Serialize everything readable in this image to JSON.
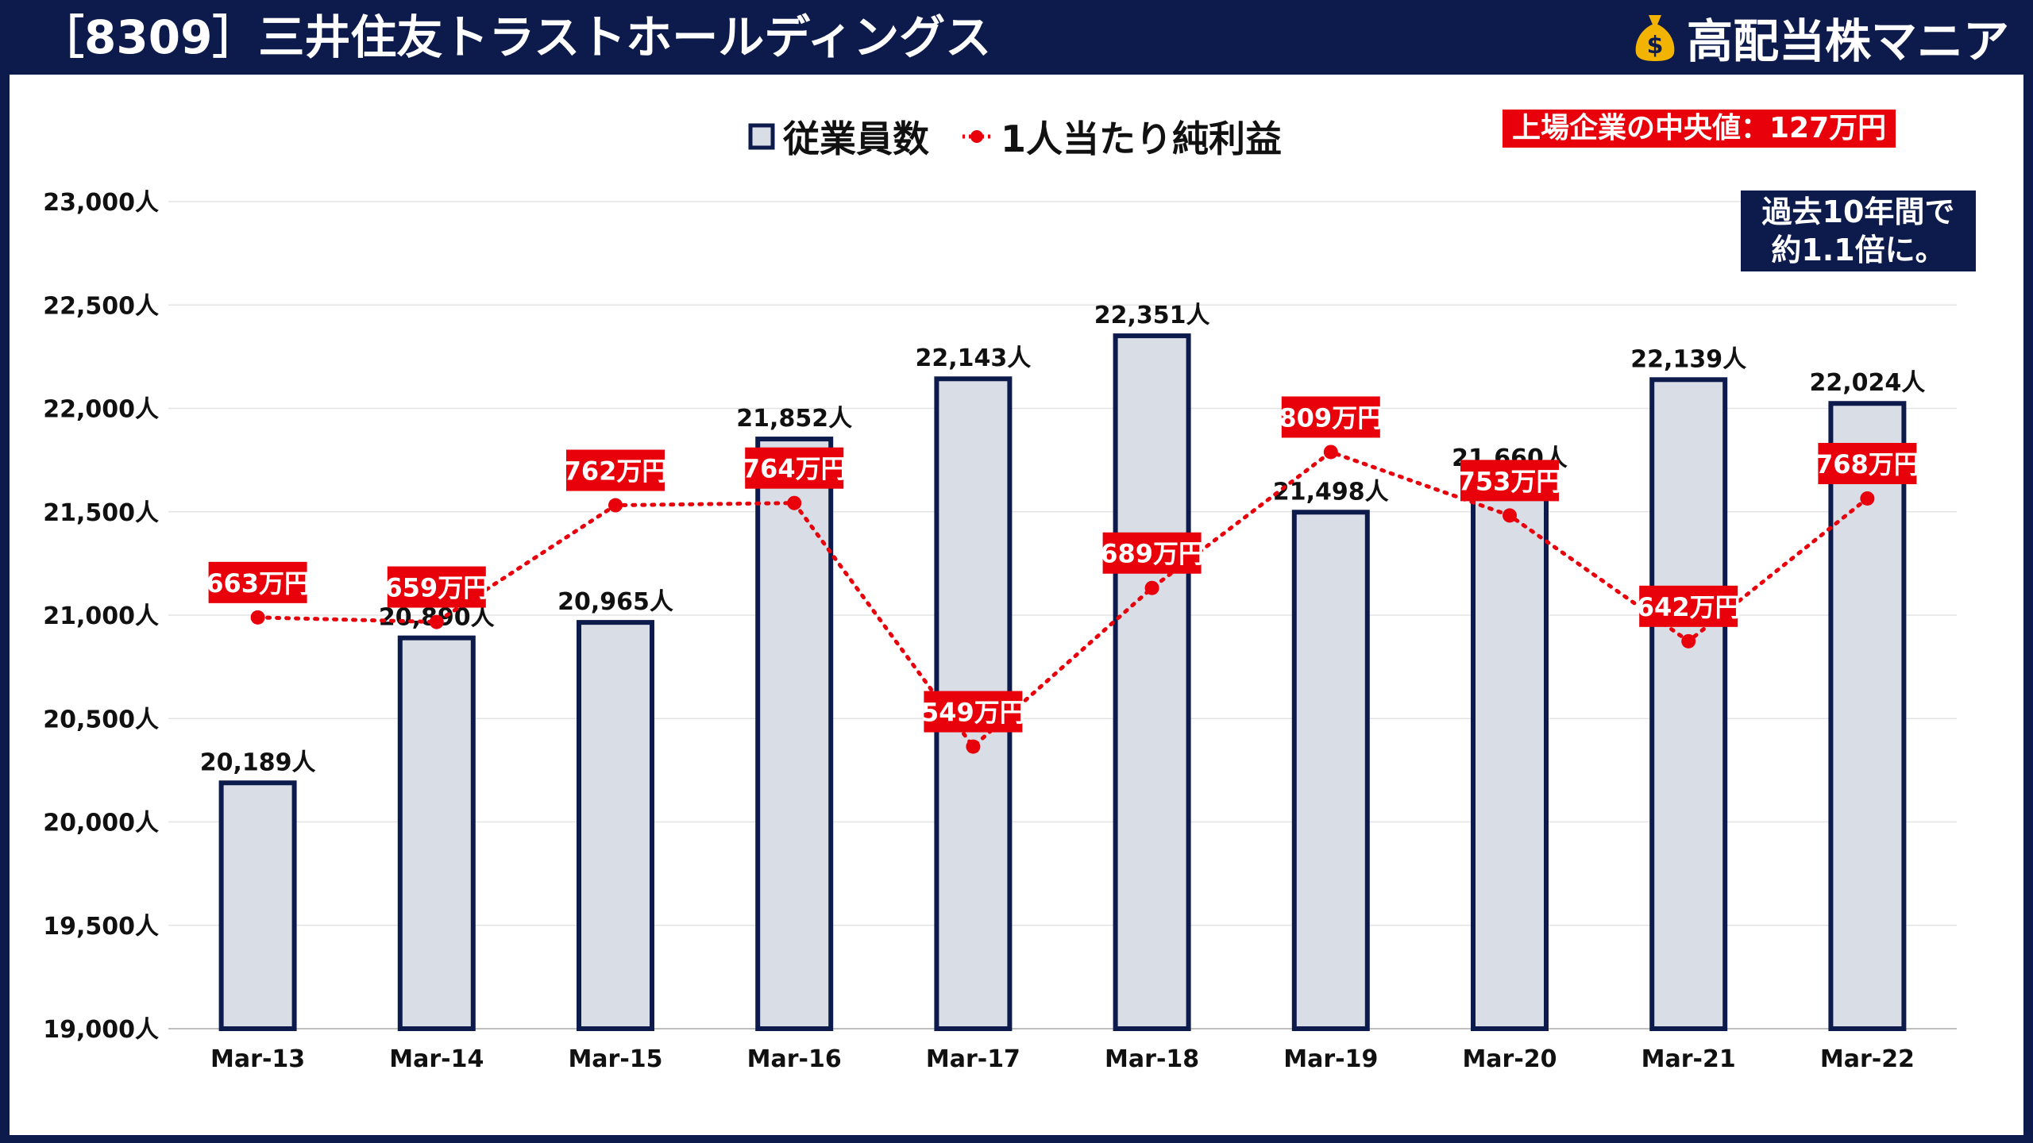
{
  "header": {
    "title": "［8309］三井住友トラストホールディングス",
    "brand": "高配当株マニア",
    "brand_icon": "money-bag-icon"
  },
  "legend": {
    "bars_label": "従業員数",
    "line_label": "1人当たり純利益"
  },
  "median_badge": "上場企業の中央値：127万円",
  "growth_note": {
    "line1": "過去10年間で",
    "line2": "約1.1倍に。"
  },
  "colors": {
    "bar_fill": "#d9dde6",
    "bar_stroke": "#0d1b4c",
    "line": "#e8000b",
    "label_bg": "#e8000b",
    "navy": "#0d1b4c"
  },
  "chart_data": {
    "type": "bar",
    "categories": [
      "Mar-13",
      "Mar-14",
      "Mar-15",
      "Mar-16",
      "Mar-17",
      "Mar-18",
      "Mar-19",
      "Mar-20",
      "Mar-21",
      "Mar-22"
    ],
    "ylim": [
      19000,
      23000
    ],
    "y_ticks": [
      "19,000人",
      "19,500人",
      "20,000人",
      "20,500人",
      "21,000人",
      "21,500人",
      "22,000人",
      "22,500人",
      "23,000人"
    ],
    "grid": true,
    "series": [
      {
        "name": "従業員数",
        "type": "bar",
        "values": [
          20189,
          20890,
          20965,
          21852,
          22143,
          22351,
          21498,
          21660,
          22139,
          22024
        ],
        "labels": [
          "20,189人",
          "20,890人",
          "20,965人",
          "21,852人",
          "22,143人",
          "22,351人",
          "21,498人",
          "21,660人",
          "22,139人",
          "22,024人"
        ]
      },
      {
        "name": "1人当たり純利益",
        "type": "line",
        "unit": "万円",
        "values": [
          663,
          659,
          762,
          764,
          549,
          689,
          809,
          753,
          642,
          768
        ],
        "labels": [
          "663万円",
          "659万円",
          "762万円",
          "764万円",
          "549万円",
          "689万円",
          "809万円",
          "753万円",
          "642万円",
          "768万円"
        ]
      }
    ]
  }
}
